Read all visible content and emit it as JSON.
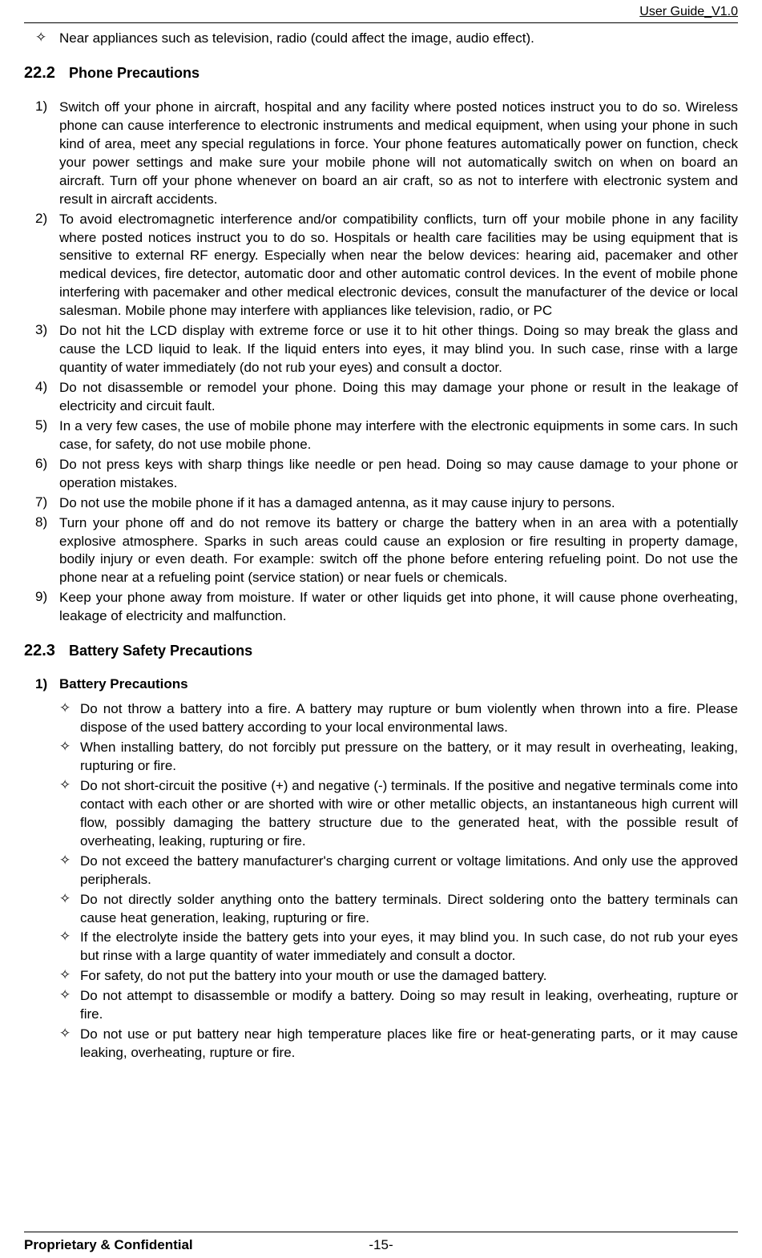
{
  "header": {
    "title": "User Guide_V1.0"
  },
  "top_bullet": {
    "marker": "✧",
    "text": "Near appliances such as television, radio (could affect the image, audio effect)."
  },
  "section22_2": {
    "number": "22.2",
    "title": "Phone Precautions",
    "items": [
      {
        "marker": "1)",
        "text": "Switch off your phone in aircraft, hospital and any facility where posted notices instruct you to do so. Wireless phone can cause interference to electronic instruments and medical equipment, when using your phone in such kind of area, meet any special regulations in force. Your phone features automatically power on function, check your power settings and make sure your mobile phone will not automatically switch on when on board an aircraft. Turn off your phone whenever on board an air craft, so as not to interfere with electronic system and result in aircraft accidents."
      },
      {
        "marker": "2)",
        "text": "To avoid electromagnetic interference and/or compatibility conflicts, turn off your mobile phone in any facility where posted notices instruct you to do so. Hospitals or health care facilities may be using equipment that is sensitive to external RF energy. Especially when near the below devices: hearing aid, pacemaker and other medical devices, fire detector, automatic door and other automatic control devices. In the event of mobile phone interfering with pacemaker and other medical electronic devices, consult the manufacturer of the device or local salesman. Mobile phone may interfere with appliances like television, radio, or PC"
      },
      {
        "marker": "3)",
        "text": "Do not hit the LCD display with extreme force or use it to hit other things. Doing so may break the glass and cause the LCD liquid to leak. If the liquid enters into eyes, it may blind you. In such case, rinse with a large quantity of water immediately (do not rub your eyes) and consult a doctor."
      },
      {
        "marker": "4)",
        "text": "Do not disassemble or remodel your phone. Doing this may damage your phone or result in the leakage of electricity and circuit fault."
      },
      {
        "marker": "5)",
        "text": "In a very few cases, the use of mobile phone may interfere with the electronic equipments in some cars. In such case, for safety, do not use mobile phone."
      },
      {
        "marker": "6)",
        "text": "Do not press keys with sharp things like needle or pen head. Doing so may cause damage to your phone or operation mistakes."
      },
      {
        "marker": "7)",
        "text": "Do not use the mobile phone if it has a damaged antenna, as it may cause injury to persons."
      },
      {
        "marker": "8)",
        "text": "Turn your phone off and do not remove its battery or charge the battery when in an area with a potentially explosive atmosphere. Sparks in such areas could cause an explosion or fire resulting in property damage, bodily injury or even death. For example: switch off the phone before entering refueling point. Do not use the phone near at a refueling point (service station) or near fuels or chemicals."
      },
      {
        "marker": "9)",
        "text": "Keep your phone away from moisture. If water or other liquids get into phone, it will cause phone overheating, leakage of electricity and malfunction."
      }
    ]
  },
  "section22_3": {
    "number": "22.3",
    "title": "Battery Safety Precautions",
    "sub_heading": {
      "marker": "1)",
      "text": "Battery Precautions"
    },
    "bullets": [
      {
        "marker": "✧",
        "text": "Do not throw a battery into a fire. A battery may rupture or bum violently when thrown into a fire. Please dispose of the used battery according to your local environmental laws."
      },
      {
        "marker": "✧",
        "text": "When installing battery, do not forcibly put pressure on the battery, or it may result in overheating, leaking, rupturing or fire."
      },
      {
        "marker": "✧",
        "text": "Do not short-circuit the positive (+) and negative (-) terminals. If the positive and negative terminals come into contact with each other or are shorted with wire or other metallic objects, an instantaneous high current will flow, possibly damaging the battery structure due to the generated heat, with the possible result of overheating, leaking, rupturing or fire."
      },
      {
        "marker": "✧",
        "text": "Do not exceed the battery manufacturer's charging current or voltage limitations. And only use the approved peripherals."
      },
      {
        "marker": "✧",
        "text": "Do not directly solder anything onto the battery terminals. Direct soldering onto the battery terminals can cause heat generation, leaking, rupturing or fire."
      },
      {
        "marker": "✧",
        "text": "If the electrolyte inside the battery gets into your eyes, it may blind you. In such case, do not rub your eyes but rinse with a large quantity of water immediately and consult a doctor."
      },
      {
        "marker": "✧",
        "text": "For safety, do not put the battery into your mouth or use the damaged battery."
      },
      {
        "marker": "✧",
        "text": "Do not attempt to disassemble or modify a battery. Doing so may result in leaking, overheating, rupture or fire."
      },
      {
        "marker": "✧",
        "text": "Do not use or put battery near high temperature places like fire or heat-generating parts, or it may cause leaking, overheating, rupture or fire."
      }
    ]
  },
  "footer": {
    "left": "Proprietary & Confidential",
    "center": "-15-"
  },
  "colors": {
    "text": "#000000",
    "background": "#ffffff",
    "border": "#000000"
  },
  "fonts": {
    "body_family": "Arial, Helvetica, sans-serif",
    "body_size_pt": 12,
    "section_number_size_pt": 14,
    "section_title_size_pt": 13
  }
}
